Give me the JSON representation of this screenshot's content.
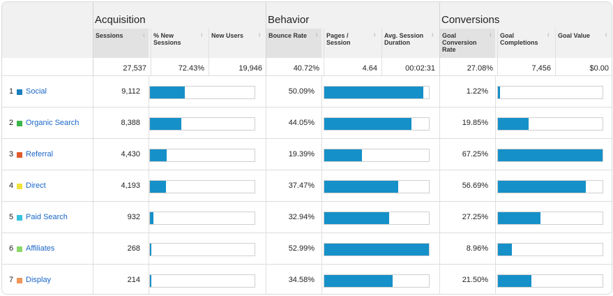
{
  "colors": {
    "bar": "#1690c8",
    "link": "#1a66c7"
  },
  "groups": [
    {
      "name": "acquisition",
      "label": "Acquisition"
    },
    {
      "name": "behavior",
      "label": "Behavior"
    },
    {
      "name": "conversions",
      "label": "Conversions"
    }
  ],
  "columns": [
    {
      "key": "sessions",
      "label": "Sessions",
      "sorted": true,
      "sort_indicator": "↓"
    },
    {
      "key": "pct_new_sessions",
      "label": "% New Sessions",
      "sorted": false,
      "sort_indicator": "↕"
    },
    {
      "key": "new_users",
      "label": "New Users",
      "sorted": false,
      "sort_indicator": "↕"
    },
    {
      "key": "bounce_rate",
      "label": "Bounce Rate",
      "sorted": false,
      "sort_indicator": "↕"
    },
    {
      "key": "pages_per_session",
      "label": "Pages / Session",
      "sorted": false,
      "sort_indicator": "↕"
    },
    {
      "key": "avg_session_duration",
      "label": "Avg. Session Duration",
      "sorted": false,
      "sort_indicator": "↕"
    },
    {
      "key": "goal_conversion_rate",
      "label": "Goal Conversion Rate",
      "sorted": false,
      "sort_indicator": "↕"
    },
    {
      "key": "goal_completions",
      "label": "Goal Completions",
      "sorted": false,
      "sort_indicator": "↕"
    },
    {
      "key": "goal_value",
      "label": "Goal Value",
      "sorted": false,
      "sort_indicator": "↕"
    }
  ],
  "totals": [
    "27,537",
    "72.43%",
    "19,946",
    "40.72%",
    "4.64",
    "00:02:31",
    "27.08%",
    "7,456",
    "$0.00"
  ],
  "rows": [
    {
      "index": "1",
      "channel": "Social",
      "swatch": "#1a7fbf",
      "sessions": "9,112",
      "new_sessions_share": 0.33,
      "bounce_rate": "50.09%",
      "bounce_bar": 0.945,
      "goal_conversion_rate": "1.22%",
      "goal_completion_share": 0.02
    },
    {
      "index": "2",
      "channel": "Organic Search",
      "swatch": "#3cb54a",
      "sessions": "8,388",
      "new_sessions_share": 0.3,
      "bounce_rate": "44.05%",
      "bounce_bar": 0.83,
      "goal_conversion_rate": "19.85%",
      "goal_completion_share": 0.29
    },
    {
      "index": "3",
      "channel": "Referral",
      "swatch": "#e05a2b",
      "sessions": "4,430",
      "new_sessions_share": 0.16,
      "bounce_rate": "19.39%",
      "bounce_bar": 0.36,
      "goal_conversion_rate": "67.25%",
      "goal_completion_share": 1.0
    },
    {
      "index": "4",
      "channel": "Direct",
      "swatch": "#f1e23a",
      "sessions": "4,193",
      "new_sessions_share": 0.15,
      "bounce_rate": "37.47%",
      "bounce_bar": 0.705,
      "goal_conversion_rate": "56.69%",
      "goal_completion_share": 0.84
    },
    {
      "index": "5",
      "channel": "Paid Search",
      "swatch": "#35c3de",
      "sessions": "932",
      "new_sessions_share": 0.03,
      "bounce_rate": "32.94%",
      "bounce_bar": 0.62,
      "goal_conversion_rate": "27.25%",
      "goal_completion_share": 0.405
    },
    {
      "index": "6",
      "channel": "Affiliates",
      "swatch": "#8bd86a",
      "sessions": "268",
      "new_sessions_share": 0.01,
      "bounce_rate": "52.99%",
      "bounce_bar": 1.0,
      "goal_conversion_rate": "8.96%",
      "goal_completion_share": 0.13
    },
    {
      "index": "7",
      "channel": "Display",
      "swatch": "#f0965a",
      "sessions": "214",
      "new_sessions_share": 0.01,
      "bounce_rate": "34.58%",
      "bounce_bar": 0.65,
      "goal_conversion_rate": "21.50%",
      "goal_completion_share": 0.32
    }
  ]
}
